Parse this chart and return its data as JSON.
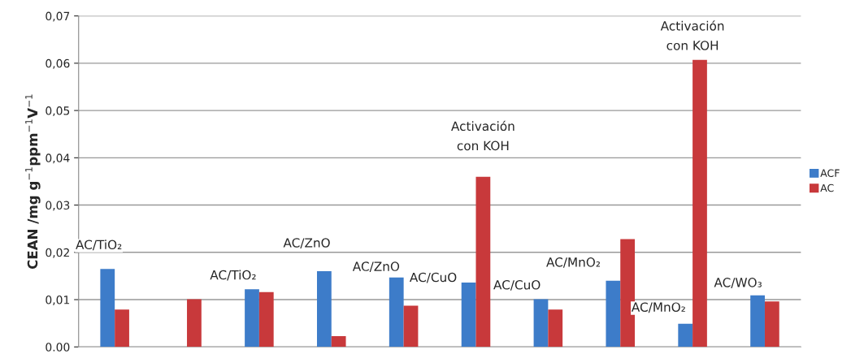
{
  "chart_data": {
    "type": "bar",
    "ylabel": "CEAN /mg g$^{−1}$ppm$^{−1}$V$^{−1}$",
    "categories": [
      null,
      null,
      null,
      null,
      null,
      null,
      null,
      null,
      null,
      null
    ],
    "series": [
      {
        "name": "ACF",
        "color": "#3d7cc9",
        "values": [
          0.0165,
          null,
          0.0122,
          0.016,
          0.0147,
          0.0136,
          0.0101,
          0.014,
          0.0049,
          0.0109
        ]
      },
      {
        "name": "AC",
        "color": "#c8393b",
        "values": [
          0.0079,
          0.0101,
          0.0116,
          0.0023,
          0.0087,
          0.036,
          0.0079,
          0.0228,
          0.0607,
          0.0096
        ]
      }
    ],
    "ylim": [
      0,
      0.07
    ],
    "yticks": [
      {
        "value": 0,
        "label": "0.00"
      },
      {
        "value": 0.01,
        "label": "0,01"
      },
      {
        "value": 0.02,
        "label": "0,02"
      },
      {
        "value": 0.03,
        "label": "0,03"
      },
      {
        "value": 0.04,
        "label": "0,04"
      },
      {
        "value": 0.05,
        "label": "0,05"
      },
      {
        "value": 0.06,
        "label": "0,06"
      },
      {
        "value": 0.07,
        "label": "0,07"
      }
    ],
    "grid": "y",
    "legend": "right",
    "annotations": [
      "AC/TiO₂",
      "AC/TiO₂",
      "AC/ZnO",
      "AC/ZnO",
      "AC/CuO",
      "Activación\ncon KOH",
      "AC/CuO",
      "AC/MnO₂",
      "AC/MnO₂",
      "Activación\ncon KOH",
      "AC/WO₃"
    ]
  }
}
